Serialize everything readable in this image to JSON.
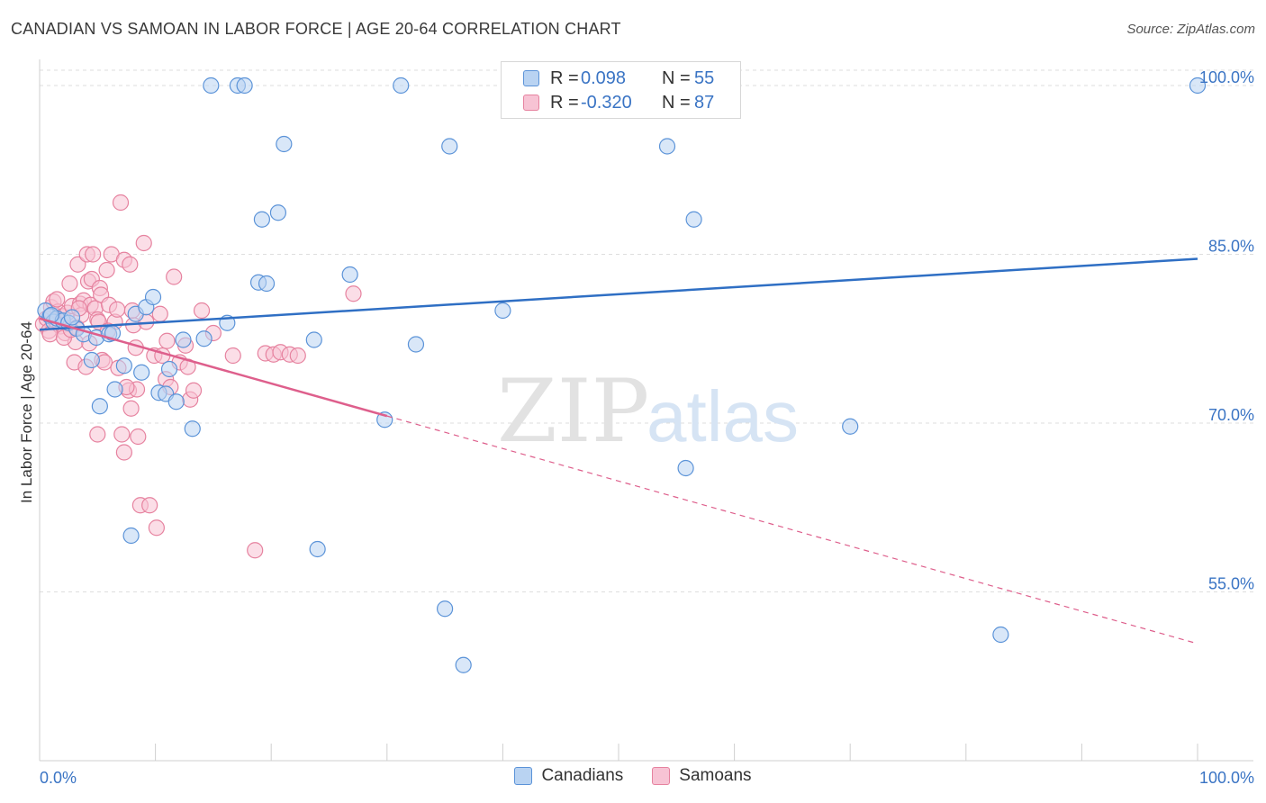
{
  "header": {
    "title": "CANADIAN VS SAMOAN IN LABOR FORCE | AGE 20-64 CORRELATION CHART",
    "source": "Source: ZipAtlas.com"
  },
  "watermark": {
    "zip": "ZIP",
    "atlas": "atlas"
  },
  "colors": {
    "canadian_fill": "#b9d3f2",
    "canadian_stroke": "#5b93d8",
    "canadian_line": "#2f6fc4",
    "samoan_fill": "#f7c3d4",
    "samoan_stroke": "#e6829f",
    "samoan_line": "#de5f8c",
    "grid": "#dedede",
    "tick_label": "#3a74c4"
  },
  "legend": {
    "rows": [
      {
        "r_label": "R =",
        "r_value": "0.098",
        "n_label": "N =",
        "n_value": "55"
      },
      {
        "r_label": "R =",
        "r_value": "-0.320",
        "n_label": "N =",
        "n_value": "87"
      }
    ]
  },
  "chart_data": {
    "type": "scatter",
    "title": "CANADIAN VS SAMOAN IN LABOR FORCE | AGE 20-64 CORRELATION CHART",
    "xlabel": "",
    "ylabel": "In Labor Force | Age 20-64",
    "xlim": [
      0,
      100
    ],
    "ylim": [
      40,
      102
    ],
    "x_tick_labels": [
      "0.0%",
      "100.0%"
    ],
    "y_ticks": [
      55,
      70,
      85,
      100
    ],
    "y_tick_labels": [
      "55.0%",
      "70.0%",
      "85.0%",
      "100.0%"
    ],
    "grid": true,
    "legend_position": "top-center",
    "series": [
      {
        "name": "Canadians",
        "r": 0.098,
        "n": 55,
        "trend": {
          "x": [
            0,
            100
          ],
          "y": [
            78.3,
            84.6
          ],
          "solid_until": 100
        },
        "points": [
          [
            0.5,
            80.0
          ],
          [
            0.9,
            79.5
          ],
          [
            1.2,
            79.0
          ],
          [
            1.5,
            79.3
          ],
          [
            2.0,
            79.1
          ],
          [
            2.5,
            78.9
          ],
          [
            3.2,
            78.4
          ],
          [
            3.8,
            77.9
          ],
          [
            4.5,
            75.6
          ],
          [
            4.9,
            77.6
          ],
          [
            5.2,
            71.5
          ],
          [
            6.0,
            77.9
          ],
          [
            6.5,
            73.0
          ],
          [
            7.3,
            75.1
          ],
          [
            7.9,
            60.0
          ],
          [
            8.3,
            79.7
          ],
          [
            8.8,
            74.5
          ],
          [
            9.2,
            80.3
          ],
          [
            9.8,
            81.2
          ],
          [
            10.3,
            72.7
          ],
          [
            10.9,
            72.6
          ],
          [
            11.2,
            74.8
          ],
          [
            11.8,
            71.9
          ],
          [
            12.4,
            77.4
          ],
          [
            13.2,
            69.5
          ],
          [
            14.2,
            77.5
          ],
          [
            14.8,
            100.0
          ],
          [
            16.2,
            78.9
          ],
          [
            17.1,
            100.0
          ],
          [
            17.7,
            100.0
          ],
          [
            18.9,
            82.5
          ],
          [
            19.2,
            88.1
          ],
          [
            19.6,
            82.4
          ],
          [
            20.6,
            88.7
          ],
          [
            21.1,
            94.8
          ],
          [
            23.7,
            77.4
          ],
          [
            24.0,
            58.8
          ],
          [
            26.8,
            83.2
          ],
          [
            29.8,
            70.3
          ],
          [
            31.2,
            100.0
          ],
          [
            32.5,
            77.0
          ],
          [
            35.0,
            53.5
          ],
          [
            35.4,
            94.6
          ],
          [
            36.6,
            48.5
          ],
          [
            40.0,
            80.0
          ],
          [
            51.0,
            100.0
          ],
          [
            54.2,
            94.6
          ],
          [
            55.8,
            66.0
          ],
          [
            56.5,
            88.1
          ],
          [
            70.0,
            69.7
          ],
          [
            83.0,
            51.2
          ],
          [
            100.0,
            100.0
          ],
          [
            1.0,
            79.6
          ],
          [
            2.8,
            79.4
          ],
          [
            6.3,
            78.0
          ]
        ]
      },
      {
        "name": "Samoans",
        "r": -0.32,
        "n": 87,
        "trend": {
          "x": [
            0,
            100
          ],
          "y": [
            79.3,
            50.4
          ],
          "solid_until": 30
        },
        "points": [
          [
            0.3,
            78.8
          ],
          [
            0.6,
            79.3
          ],
          [
            0.8,
            78.2
          ],
          [
            1.0,
            80.3
          ],
          [
            1.2,
            80.8
          ],
          [
            1.4,
            79.1
          ],
          [
            1.6,
            79.9
          ],
          [
            1.8,
            78.6
          ],
          [
            2.0,
            79.5
          ],
          [
            2.2,
            78.0
          ],
          [
            2.4,
            79.8
          ],
          [
            2.6,
            82.4
          ],
          [
            2.8,
            80.4
          ],
          [
            3.0,
            75.4
          ],
          [
            3.1,
            77.2
          ],
          [
            3.2,
            78.5
          ],
          [
            3.3,
            84.1
          ],
          [
            3.5,
            80.6
          ],
          [
            3.6,
            79.6
          ],
          [
            3.8,
            80.9
          ],
          [
            4.0,
            75.0
          ],
          [
            4.1,
            85.0
          ],
          [
            4.2,
            82.6
          ],
          [
            4.4,
            80.5
          ],
          [
            4.5,
            82.8
          ],
          [
            4.6,
            85.0
          ],
          [
            4.8,
            80.2
          ],
          [
            5.0,
            79.2
          ],
          [
            5.0,
            69.0
          ],
          [
            5.2,
            82.0
          ],
          [
            5.3,
            81.4
          ],
          [
            5.4,
            75.6
          ],
          [
            5.6,
            75.4
          ],
          [
            5.8,
            83.6
          ],
          [
            6.0,
            80.5
          ],
          [
            6.2,
            85.0
          ],
          [
            6.5,
            79.0
          ],
          [
            6.7,
            80.1
          ],
          [
            7.0,
            89.6
          ],
          [
            7.1,
            69.0
          ],
          [
            7.3,
            84.5
          ],
          [
            7.3,
            67.4
          ],
          [
            7.7,
            72.9
          ],
          [
            7.8,
            84.1
          ],
          [
            7.9,
            71.3
          ],
          [
            8.1,
            78.7
          ],
          [
            8.3,
            76.7
          ],
          [
            8.4,
            73.0
          ],
          [
            8.5,
            68.8
          ],
          [
            8.7,
            62.7
          ],
          [
            9.0,
            86.0
          ],
          [
            9.5,
            62.7
          ],
          [
            9.9,
            76.0
          ],
          [
            10.1,
            60.7
          ],
          [
            10.4,
            79.7
          ],
          [
            10.6,
            76.0
          ],
          [
            10.9,
            73.9
          ],
          [
            11.3,
            73.2
          ],
          [
            11.6,
            83.0
          ],
          [
            12.1,
            75.4
          ],
          [
            12.6,
            76.9
          ],
          [
            13.0,
            72.1
          ],
          [
            13.3,
            72.9
          ],
          [
            14.0,
            80.0
          ],
          [
            16.7,
            76.0
          ],
          [
            18.6,
            58.7
          ],
          [
            19.5,
            76.2
          ],
          [
            20.2,
            76.1
          ],
          [
            20.8,
            76.3
          ],
          [
            21.6,
            76.1
          ],
          [
            22.3,
            76.0
          ],
          [
            27.1,
            81.5
          ],
          [
            0.9,
            77.9
          ],
          [
            1.5,
            81.0
          ],
          [
            2.1,
            77.6
          ],
          [
            2.7,
            78.3
          ],
          [
            3.4,
            80.2
          ],
          [
            4.3,
            77.1
          ],
          [
            5.1,
            79.0
          ],
          [
            5.9,
            78.2
          ],
          [
            6.8,
            74.9
          ],
          [
            7.5,
            73.2
          ],
          [
            8.0,
            80.0
          ],
          [
            9.2,
            79.0
          ],
          [
            11.0,
            77.3
          ],
          [
            12.8,
            75.0
          ],
          [
            15.0,
            78.0
          ]
        ]
      }
    ]
  },
  "bottom_legend": {
    "items": [
      "Canadians",
      "Samoans"
    ]
  }
}
